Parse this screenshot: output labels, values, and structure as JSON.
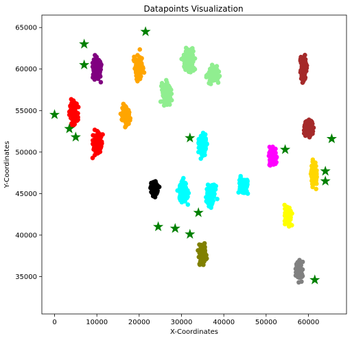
{
  "chart_data": {
    "type": "scatter",
    "title": "Datapoints Visualization",
    "xlabel": "X-Coordinates",
    "ylabel": "Y-Coordinates",
    "xlim": [
      -3000,
      69000
    ],
    "ylim": [
      30500,
      66500
    ],
    "xticks": [
      0,
      10000,
      20000,
      30000,
      40000,
      50000,
      60000
    ],
    "yticks": [
      35000,
      40000,
      45000,
      50000,
      55000,
      60000,
      65000
    ],
    "grid": false,
    "legend": "none",
    "point_clusters": [
      {
        "color": "#800080",
        "center": [
          10000,
          60000
        ],
        "spread": [
          1800,
          2200
        ],
        "count": 160
      },
      {
        "color": "#ffa500",
        "center": [
          19800,
          60300
        ],
        "spread": [
          1800,
          2400
        ],
        "count": 120
      },
      {
        "color": "#ffa500",
        "center": [
          16800,
          54500
        ],
        "spread": [
          1600,
          2200
        ],
        "count": 110
      },
      {
        "color": "#90ee90",
        "center": [
          26500,
          57000
        ],
        "spread": [
          2000,
          2200
        ],
        "count": 110
      },
      {
        "color": "#90ee90",
        "center": [
          31800,
          61000
        ],
        "spread": [
          2500,
          2200
        ],
        "count": 130
      },
      {
        "color": "#90ee90",
        "center": [
          37500,
          59400
        ],
        "spread": [
          2200,
          1800
        ],
        "count": 110
      },
      {
        "color": "#ff0000",
        "center": [
          4500,
          54800
        ],
        "spread": [
          1700,
          2000
        ],
        "count": 130
      },
      {
        "color": "#ff0000",
        "center": [
          10200,
          51000
        ],
        "spread": [
          1800,
          2100
        ],
        "count": 130
      },
      {
        "color": "#a52a2a",
        "center": [
          58800,
          60000
        ],
        "spread": [
          1300,
          2400
        ],
        "count": 110
      },
      {
        "color": "#a52a2a",
        "center": [
          60000,
          52800
        ],
        "spread": [
          1600,
          1800
        ],
        "count": 110
      },
      {
        "color": "#00ffff",
        "center": [
          35000,
          50800
        ],
        "spread": [
          1600,
          2000
        ],
        "count": 120
      },
      {
        "color": "#00ffff",
        "center": [
          30500,
          45300
        ],
        "spread": [
          1800,
          2000
        ],
        "count": 110
      },
      {
        "color": "#00ffff",
        "center": [
          37000,
          44800
        ],
        "spread": [
          1800,
          2000
        ],
        "count": 120
      },
      {
        "color": "#00ffff",
        "center": [
          44800,
          46000
        ],
        "spread": [
          1800,
          1600
        ],
        "count": 110
      },
      {
        "color": "#ff00ff",
        "center": [
          51500,
          49300
        ],
        "spread": [
          1500,
          1800
        ],
        "count": 110
      },
      {
        "color": "#ffd700",
        "center": [
          61300,
          47400
        ],
        "spread": [
          1300,
          2500
        ],
        "count": 120
      },
      {
        "color": "#ffff00",
        "center": [
          55200,
          42300
        ],
        "spread": [
          1500,
          2000
        ],
        "count": 120
      },
      {
        "color": "#000000",
        "center": [
          23600,
          45600
        ],
        "spread": [
          1500,
          1500
        ],
        "count": 100
      },
      {
        "color": "#808000",
        "center": [
          35000,
          37700
        ],
        "spread": [
          1500,
          2000
        ],
        "count": 110
      },
      {
        "color": "#808080",
        "center": [
          57800,
          35700
        ],
        "spread": [
          1500,
          1800
        ],
        "count": 100
      }
    ],
    "centroids": {
      "color": "#008000",
      "points": [
        [
          7000,
          63000
        ],
        [
          7000,
          60500
        ],
        [
          21500,
          64500
        ],
        [
          0,
          54500
        ],
        [
          3500,
          52800
        ],
        [
          5000,
          51800
        ],
        [
          32000,
          51700
        ],
        [
          54500,
          50300
        ],
        [
          65500,
          51600
        ],
        [
          64000,
          47700
        ],
        [
          64000,
          46500
        ],
        [
          24500,
          41000
        ],
        [
          28500,
          40800
        ],
        [
          34000,
          42700
        ],
        [
          32000,
          40100
        ],
        [
          61500,
          34600
        ]
      ]
    },
    "colors": {
      "background": "#ffffff",
      "axis": "#000000"
    }
  }
}
